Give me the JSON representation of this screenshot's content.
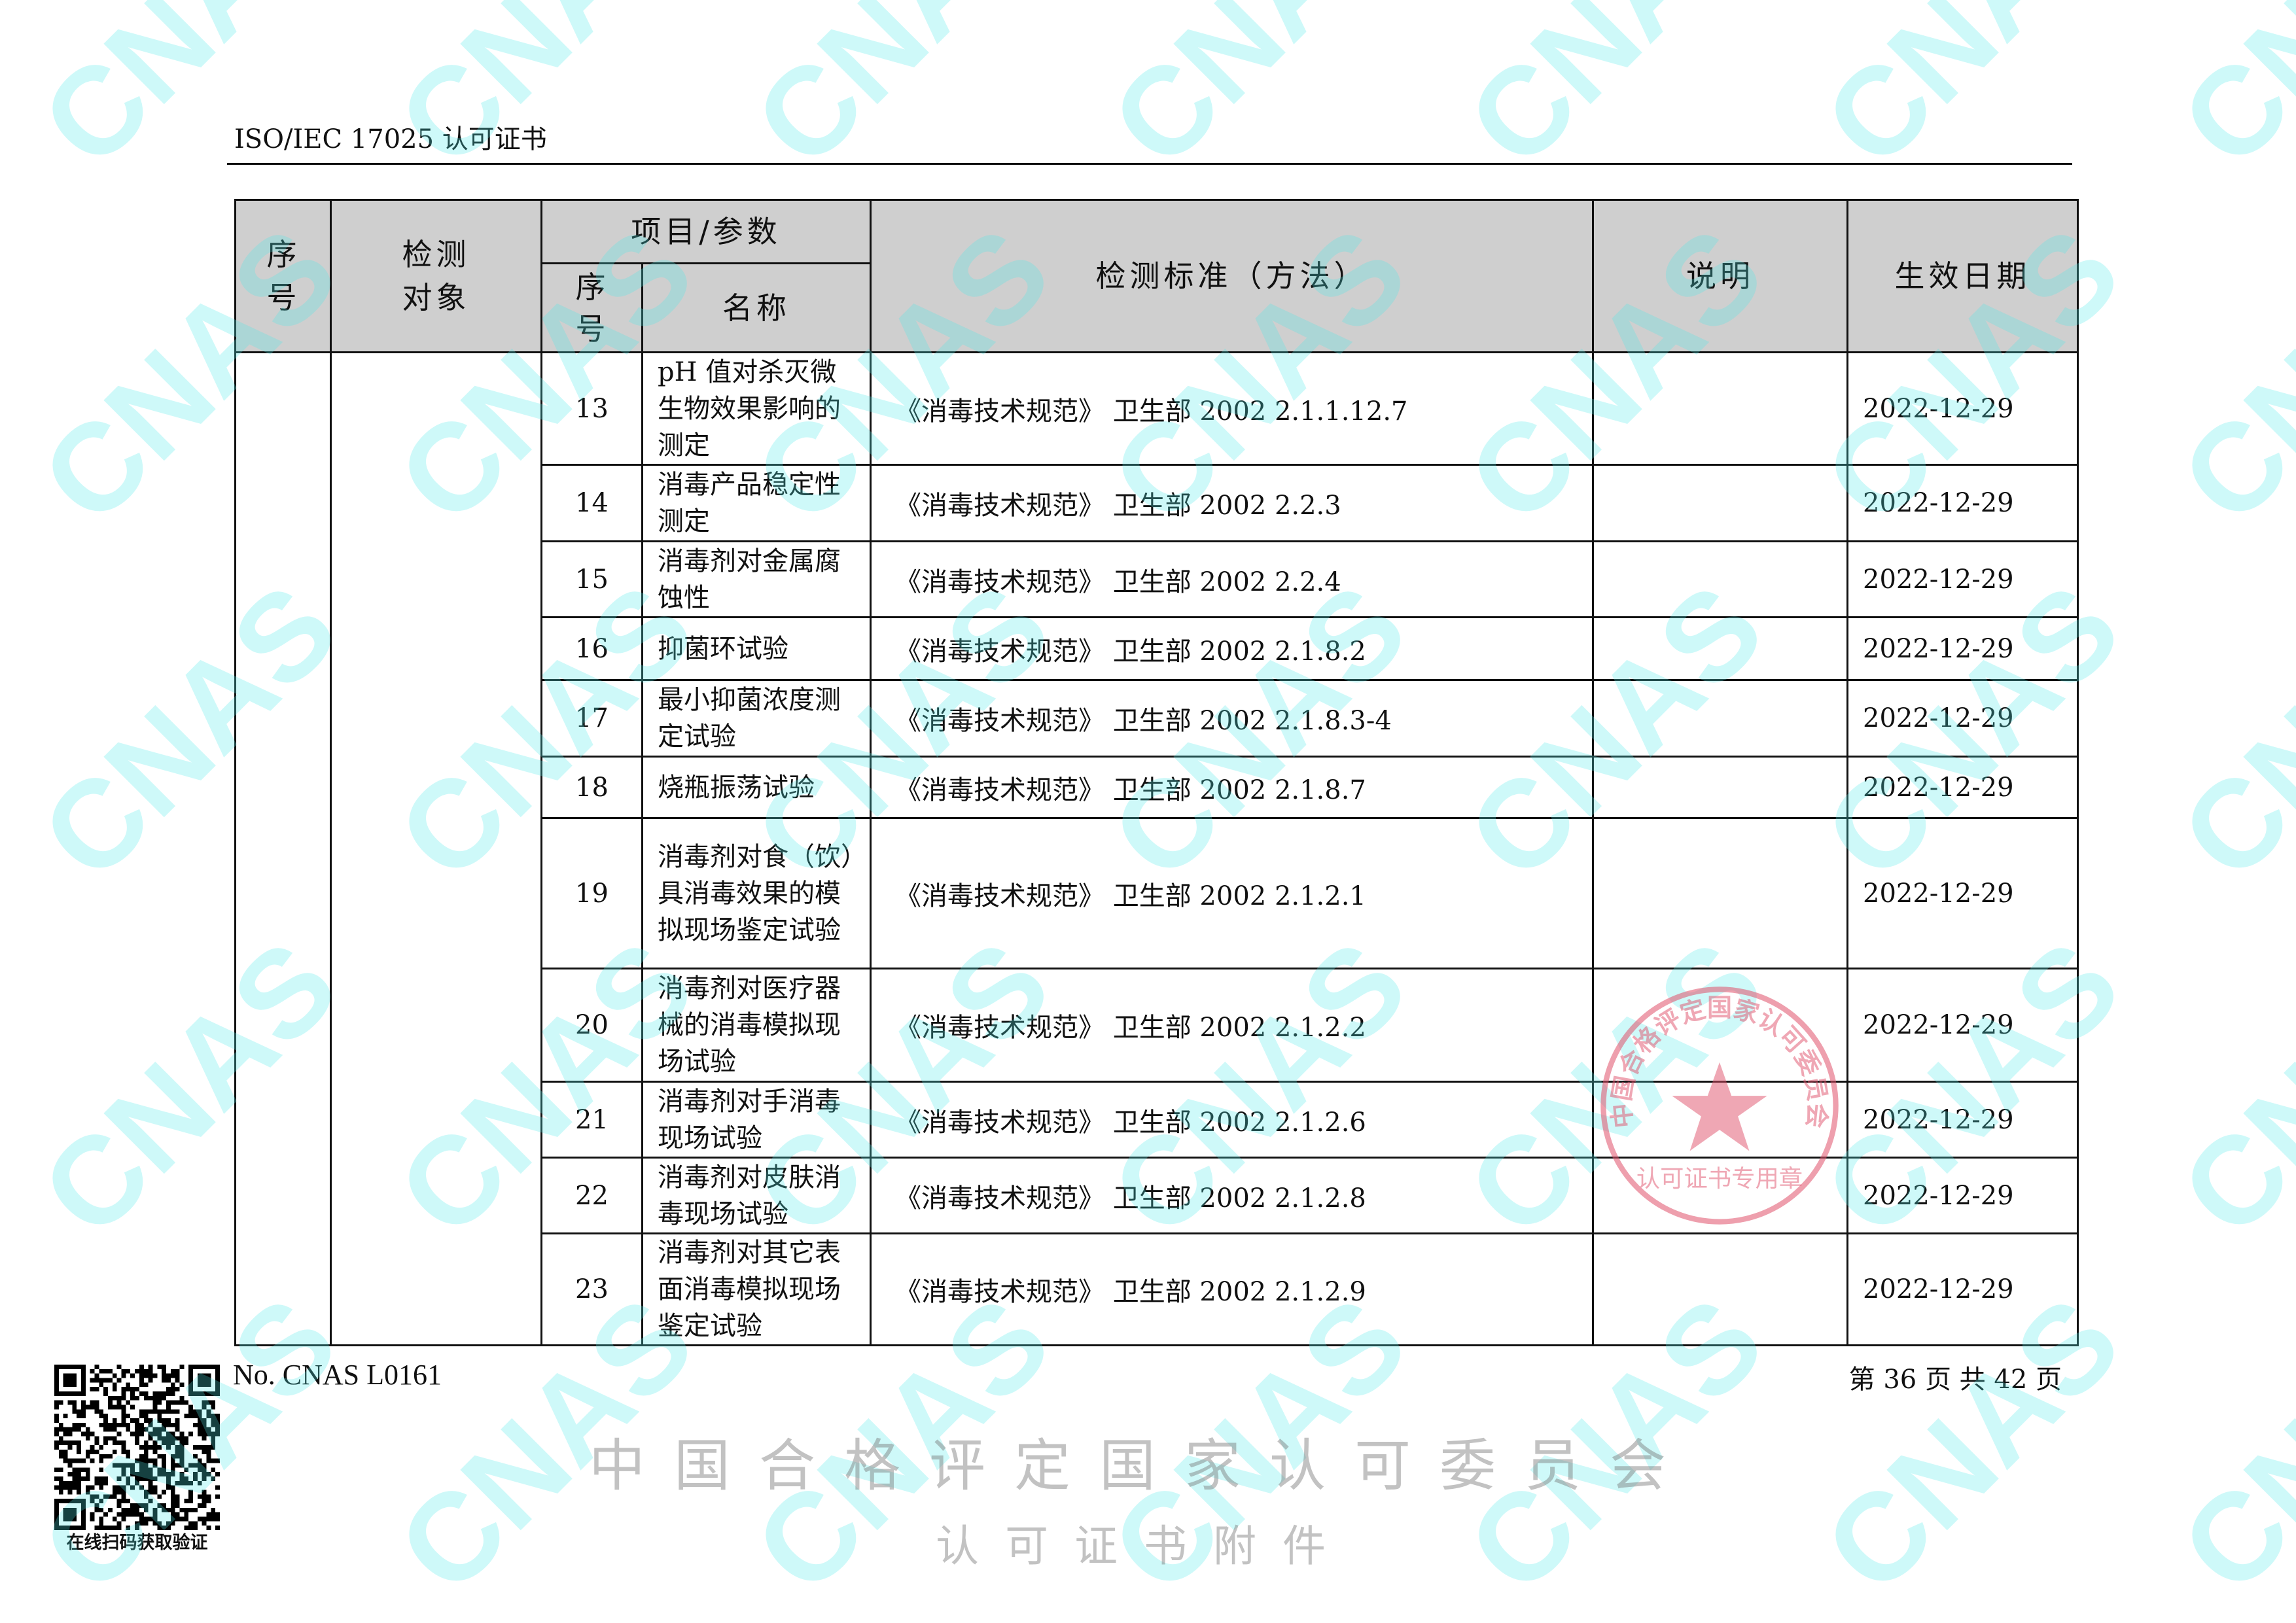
{
  "header": {
    "title": "ISO/IEC 17025 认可证书"
  },
  "table": {
    "headers": {
      "seq": "序号",
      "object": "检测对象",
      "item_group": "项目/参数",
      "item_seq": "序号",
      "item_name": "名称",
      "standard": "检测标准（方法）",
      "note": "说明",
      "date": "生效日期"
    },
    "rows": [
      {
        "no": "13",
        "name": "pH 值对杀灭微生物效果影响的测定",
        "standard": "《消毒技术规范》 卫生部 2002 2.1.1.12.7",
        "note": "",
        "date": "2022-12-29"
      },
      {
        "no": "14",
        "name": "消毒产品稳定性测定",
        "standard": "《消毒技术规范》 卫生部 2002 2.2.3",
        "note": "",
        "date": "2022-12-29"
      },
      {
        "no": "15",
        "name": "消毒剂对金属腐蚀性",
        "standard": "《消毒技术规范》 卫生部 2002 2.2.4",
        "note": "",
        "date": "2022-12-29"
      },
      {
        "no": "16",
        "name": "抑菌环试验",
        "standard": "《消毒技术规范》 卫生部 2002 2.1.8.2",
        "note": "",
        "date": "2022-12-29"
      },
      {
        "no": "17",
        "name": "最小抑菌浓度测定试验",
        "standard": "《消毒技术规范》 卫生部 2002 2.1.8.3-4",
        "note": "",
        "date": "2022-12-29"
      },
      {
        "no": "18",
        "name": "烧瓶振荡试验",
        "standard": "《消毒技术规范》 卫生部 2002 2.1.8.7",
        "note": "",
        "date": "2022-12-29"
      },
      {
        "no": "19",
        "name": "消毒剂对食（饮）具消毒效果的模拟现场鉴定试验",
        "standard": "《消毒技术规范》 卫生部 2002 2.1.2.1",
        "note": "",
        "date": "2022-12-29"
      },
      {
        "no": "20",
        "name": "消毒剂对医疗器械的消毒模拟现场试验",
        "standard": "《消毒技术规范》 卫生部 2002 2.1.2.2",
        "note": "",
        "date": "2022-12-29"
      },
      {
        "no": "21",
        "name": "消毒剂对手消毒现场试验",
        "standard": "《消毒技术规范》 卫生部 2002 2.1.2.6",
        "note": "",
        "date": "2022-12-29"
      },
      {
        "no": "22",
        "name": "消毒剂对皮肤消毒现场试验",
        "standard": "《消毒技术规范》 卫生部 2002 2.1.2.8",
        "note": "",
        "date": "2022-12-29"
      },
      {
        "no": "23",
        "name": "消毒剂对其它表面消毒模拟现场鉴定试验",
        "standard": "《消毒技术规范》 卫生部 2002 2.1.2.9",
        "note": "",
        "date": "2022-12-29"
      }
    ]
  },
  "watermarks": {
    "cnas": "CNAS",
    "line1": "中国合格评定国家认可委员会",
    "line2": "认可证书附件",
    "seal_text": "中国合格评定国家认可委员会",
    "seal_bottom": "认可证书专用章",
    "seal_color": "#e0506a",
    "cnas_color": "#50ebeb"
  },
  "footer": {
    "cert_no": "No. CNAS L0161",
    "page": "第 36 页 共 42 页",
    "qr_caption": "在线扫码获取验证"
  }
}
